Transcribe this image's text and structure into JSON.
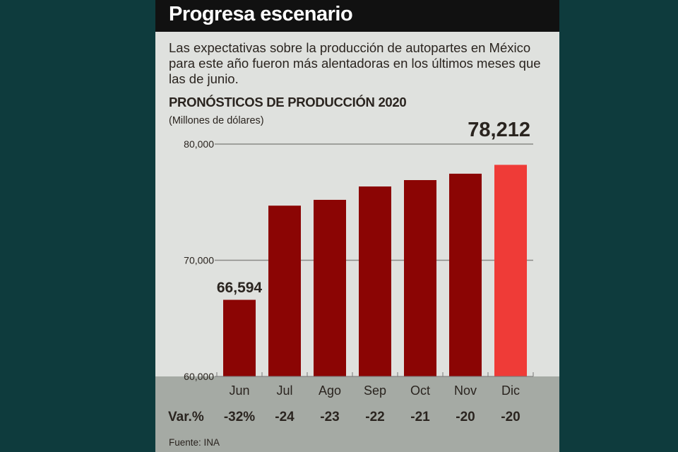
{
  "header": {
    "title": "Progresa escenario"
  },
  "subtitle": "Las expectativas sobre la producción de autopartes en México para este año fueron más alentadoras en los últimos meses que las de junio.",
  "source": "Fuente: INA",
  "chart_data": {
    "type": "bar",
    "title": "PRONÓSTICOS DE PRODUCCIÓN 2020",
    "unit": "(Millones de dólares)",
    "categories": [
      "Jun",
      "Jul",
      "Ago",
      "Sep",
      "Oct",
      "Nov",
      "Dic"
    ],
    "values": [
      66594,
      74700,
      75200,
      76350,
      76900,
      77450,
      78212
    ],
    "data_labels": {
      "0": "66,594",
      "6": "78,212"
    },
    "ylim": [
      60000,
      80000
    ],
    "yticks": [
      {
        "value": 60000,
        "label": "60,000"
      },
      {
        "value": 70000,
        "label": "70,000"
      },
      {
        "value": 80000,
        "label": "80,000"
      }
    ],
    "var_label": "Var.%",
    "var_values": [
      "-32%",
      "-24",
      "-23",
      "-22",
      "-21",
      "-20",
      "-20"
    ],
    "colors": {
      "bar": "#8b0504",
      "highlight": "#ef3b37"
    }
  }
}
